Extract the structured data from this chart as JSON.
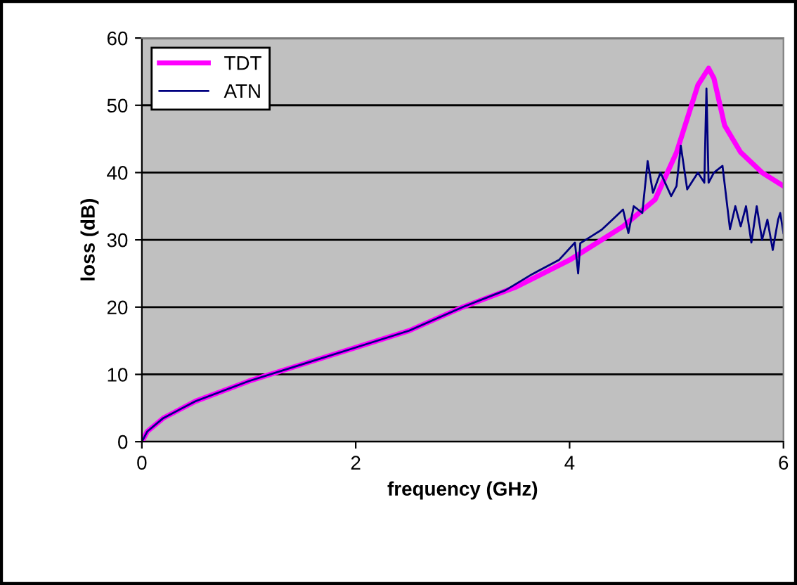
{
  "chart_data": {
    "type": "line",
    "xlabel": "frequency (GHz)",
    "ylabel": "loss (dB)",
    "xlim": [
      0,
      6
    ],
    "xticks": [
      0,
      2,
      4,
      6
    ],
    "ylim": [
      0,
      60
    ],
    "yticks": [
      0,
      10,
      20,
      30,
      40,
      50,
      60
    ],
    "grid": "y",
    "legend": "top left",
    "marker": "none",
    "line_style": "solid",
    "series": [
      {
        "name": "TDT",
        "color": "#ff00ff",
        "x": [
          0,
          0.05,
          0.2,
          0.5,
          1,
          1.5,
          2,
          2.5,
          3,
          3.5,
          4,
          4.5,
          4.8,
          5.0,
          5.1,
          5.2,
          5.3,
          5.35,
          5.45,
          5.6,
          5.8,
          6
        ],
        "values": [
          0,
          1.5,
          3.5,
          6,
          9,
          11.5,
          14,
          16.5,
          20,
          23,
          27,
          32,
          36,
          43,
          48,
          53,
          55.5,
          54,
          47,
          43,
          40,
          38
        ]
      },
      {
        "name": "ATN",
        "color": "#000080",
        "x": [
          0,
          0.05,
          0.2,
          0.5,
          1,
          1.5,
          2,
          2.5,
          3,
          3.4,
          3.65,
          3.9,
          4.05,
          4.08,
          4.1,
          4.2,
          4.3,
          4.4,
          4.5,
          4.55,
          4.6,
          4.68,
          4.73,
          4.78,
          4.85,
          4.95,
          5.0,
          5.04,
          5.1,
          5.2,
          5.26,
          5.28,
          5.3,
          5.35,
          5.43,
          5.5,
          5.55,
          5.6,
          5.65,
          5.7,
          5.75,
          5.8,
          5.85,
          5.9,
          5.95,
          5.97,
          6
        ],
        "values": [
          0,
          1.5,
          3.5,
          6,
          9,
          11.5,
          14,
          16.5,
          20,
          22.5,
          24.9,
          27,
          29.6,
          25,
          29.5,
          30.5,
          31.5,
          33,
          34.5,
          31,
          35,
          34,
          41.7,
          37,
          40,
          36.5,
          38,
          44,
          37.5,
          40,
          38.5,
          52.5,
          38.5,
          40,
          41,
          31.6,
          35,
          32,
          35,
          29.6,
          35,
          30,
          33,
          28.5,
          33,
          34,
          31
        ]
      }
    ]
  }
}
